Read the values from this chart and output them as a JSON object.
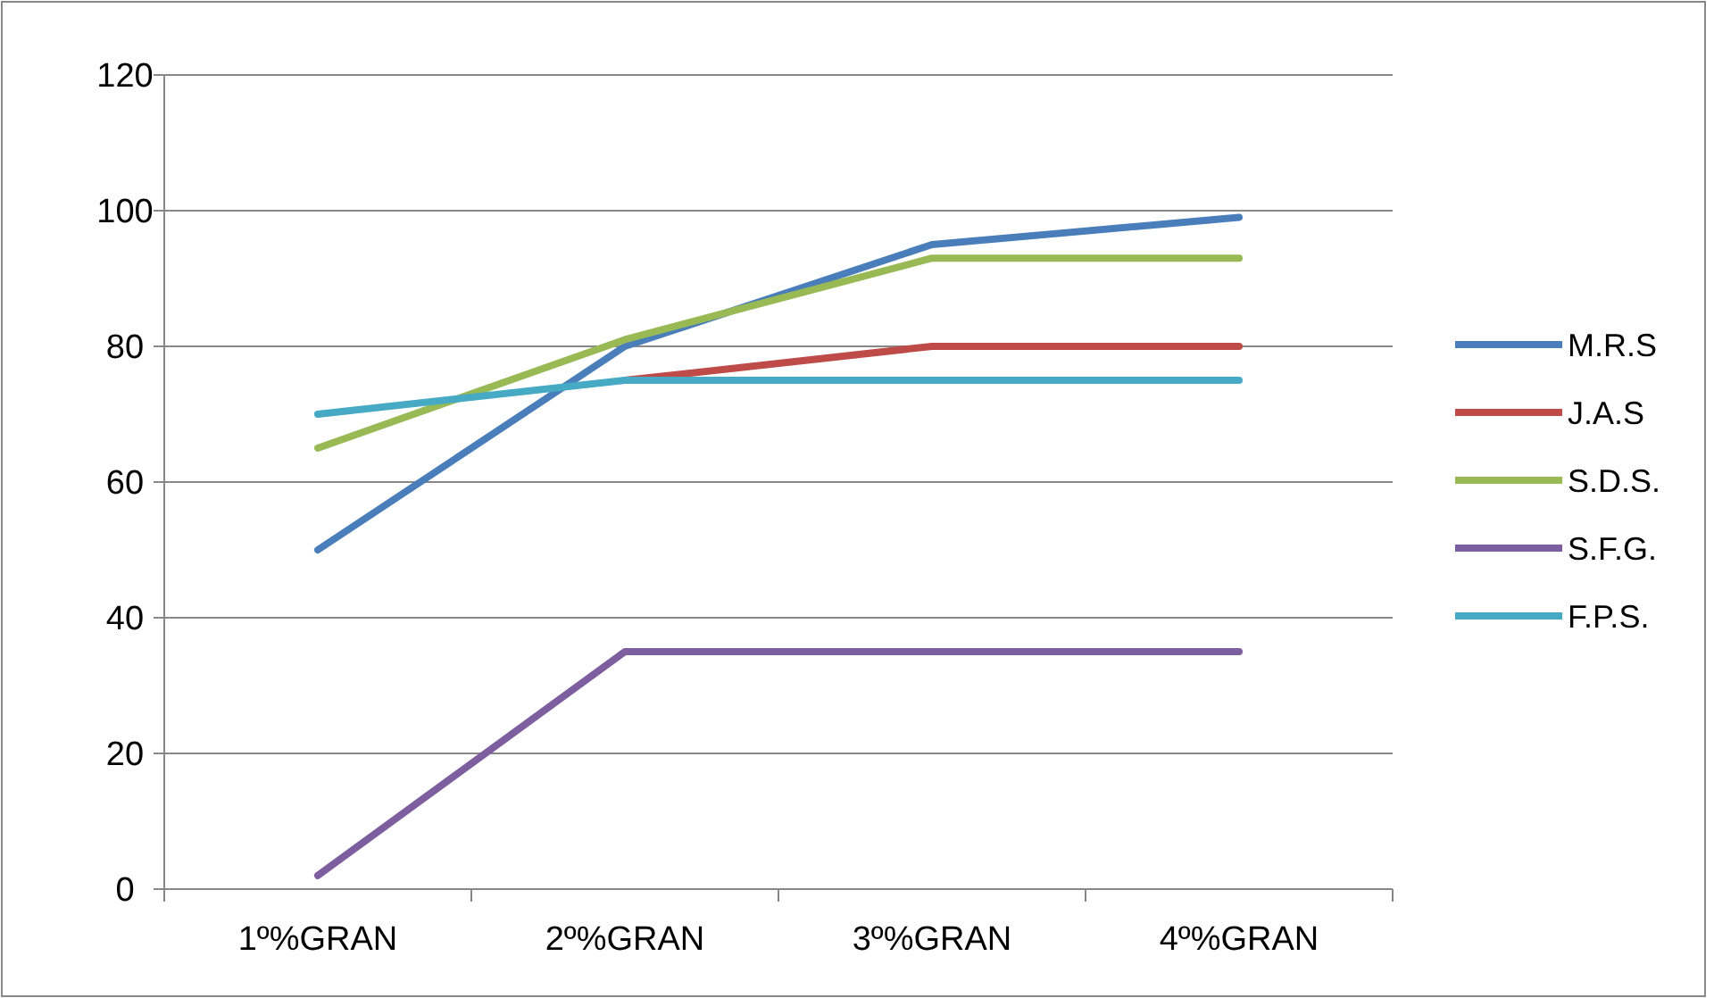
{
  "chart_data": {
    "type": "line",
    "categories": [
      "1º%GRAN",
      "2º%GRAN",
      "3º%GRAN",
      "4º%GRAN"
    ],
    "series": [
      {
        "name": "M.R.S",
        "color": "#4a7ebb",
        "values": [
          50,
          80,
          95,
          99
        ]
      },
      {
        "name": "J.A.S",
        "color": "#be4b48",
        "values": [
          null,
          75,
          80,
          80
        ]
      },
      {
        "name": "S.D.S.",
        "color": "#98b954",
        "values": [
          65,
          81,
          93,
          93
        ]
      },
      {
        "name": "S.F.G.",
        "color": "#7d5fa0",
        "values": [
          2,
          35,
          35,
          35
        ]
      },
      {
        "name": "F.P.S.",
        "color": "#46aac5",
        "values": [
          70,
          75,
          75,
          75
        ]
      }
    ],
    "ylim": [
      0,
      120
    ],
    "yticks": [
      0,
      20,
      40,
      60,
      80,
      100,
      120
    ],
    "grid": "y",
    "legend": "right",
    "marker": "none",
    "line_style": "solid"
  }
}
